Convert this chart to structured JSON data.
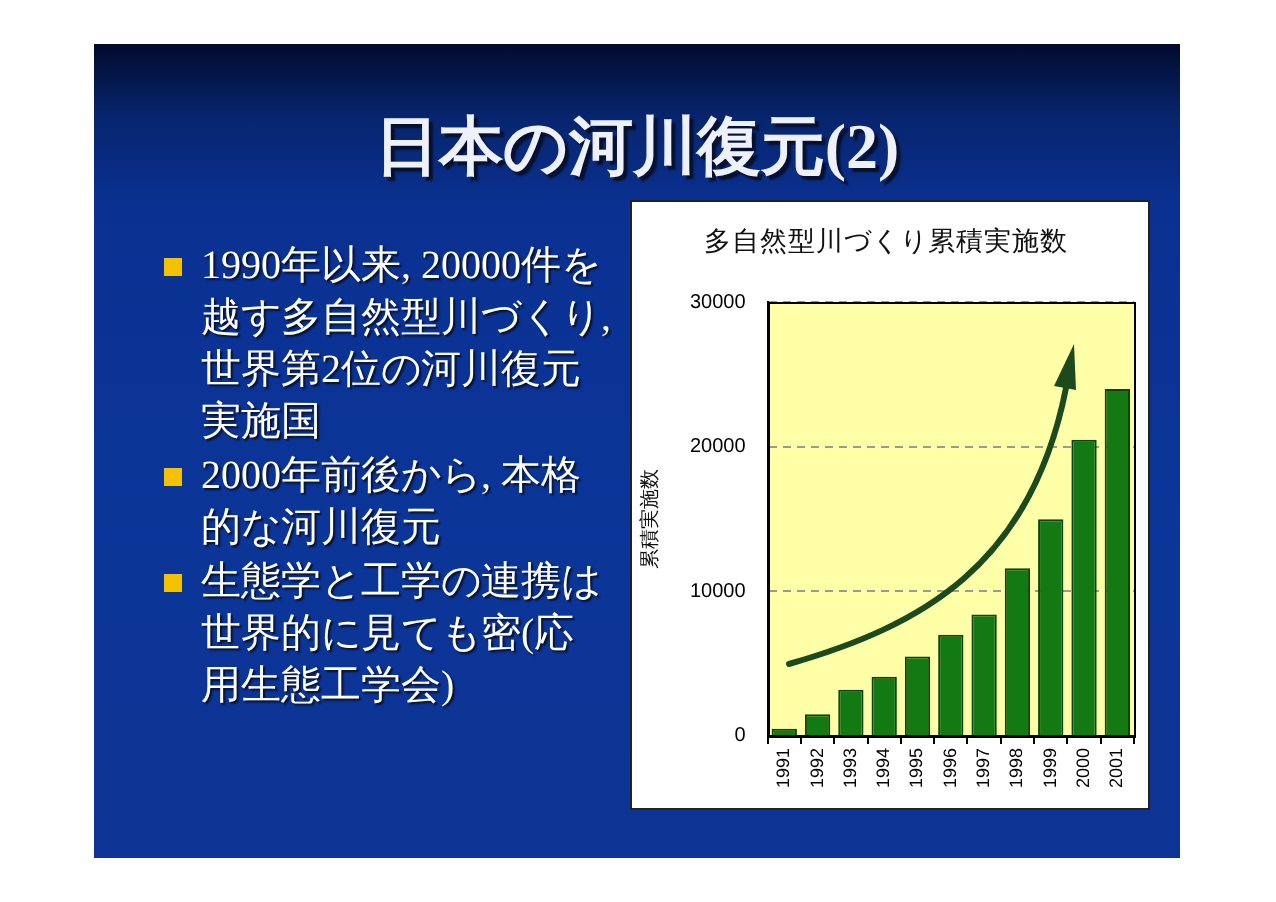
{
  "chart_data": [
    {
      "type": "other",
      "title": "日本の河川復元(2)",
      "annotations": [
        "1990年以来, 20000件を越す多自然型川づくり, 世界第2位の河川復元実施国",
        "2000年前後から, 本格的な河川復元",
        "生態学と工学の連携は世界的に見ても密(応用生態工学会)"
      ]
    },
    {
      "type": "bar",
      "title": "多自然型川づくり累積実施数",
      "ylabel": "累積実施数",
      "categories": [
        "1991",
        "1992",
        "1993",
        "1994",
        "1995",
        "1996",
        "1997",
        "1998",
        "1999",
        "2000",
        "2001"
      ],
      "values": [
        500,
        1500,
        3200,
        4100,
        5500,
        7000,
        8400,
        11600,
        15000,
        20500,
        24000
      ],
      "color": "#137a13",
      "ylim": [
        0,
        30000
      ],
      "yticks": [
        0,
        10000,
        20000,
        30000
      ],
      "grid": "y"
    }
  ]
}
